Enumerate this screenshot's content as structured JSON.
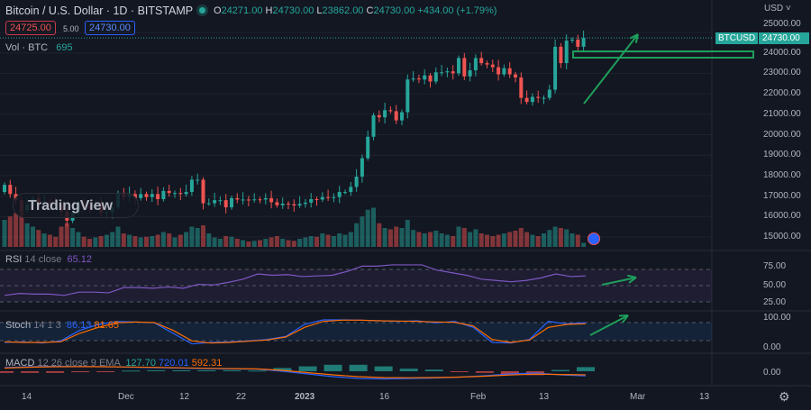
{
  "header": {
    "title": "Bitcoin / U.S. Dollar · 1D · BITSTAMP",
    "o_label": "O",
    "o": "24271.00",
    "h_label": "H",
    "h": "24730.00",
    "l_label": "L",
    "l": "23862.00",
    "c_label": "C",
    "c": "24730.00",
    "change": "+434.00 (+1.79%)"
  },
  "trade": {
    "sell": "24725.00",
    "spread": "5.00",
    "buy": "24730.00"
  },
  "volume": {
    "label": "Vol · BTC",
    "value": "695"
  },
  "rsi": {
    "label": "RSI",
    "params": "14 close",
    "value": "65.12",
    "levels": [
      "75.00",
      "50.00",
      "25.00"
    ]
  },
  "stoch": {
    "label": "Stoch",
    "params": "14 1 3",
    "k": "86.13",
    "d": "81.65",
    "levels": [
      "100.00",
      "0.00"
    ]
  },
  "macd": {
    "label": "MACD",
    "params": "12 26 close 9 EMA",
    "hist": "127.70",
    "macd": "720.01",
    "signal": "592.31",
    "levels": [
      "0.00"
    ]
  },
  "watermark": "TradingView",
  "axis": {
    "currency": "USD",
    "symbol": "BTCUSD",
    "last": "24730.00",
    "ticks": [
      "25000.00",
      "24000.00",
      "23000.00",
      "22000.00",
      "21000.00",
      "20000.00",
      "19000.00",
      "18000.00",
      "17000.00",
      "16000.00",
      "15000.00"
    ]
  },
  "time_ticks": [
    "14",
    "Dec",
    "12",
    "22",
    "2023",
    "16",
    "Feb",
    "13",
    "Mar",
    "13"
  ],
  "colors": {
    "up": "#26a69a",
    "down": "#ef5350",
    "bg": "#131722",
    "rsi": "#7e57c2",
    "k": "#2962ff",
    "d": "#ff6d00",
    "drawing": "#1e9e5a"
  },
  "chart_data": {
    "type": "candlestick",
    "title": "Bitcoin / U.S. Dollar · 1D · BITSTAMP",
    "x_start": "Nov 10",
    "interval": "1D",
    "ylim": [
      14500,
      25500
    ],
    "closes": [
      17550,
      17100,
      16800,
      16300,
      16600,
      16900,
      16650,
      16700,
      16650,
      16600,
      16250,
      15800,
      16200,
      16600,
      16500,
      16450,
      16550,
      16200,
      16200,
      16450,
      17150,
      16950,
      17100,
      16900,
      17100,
      16950,
      17100,
      16850,
      17250,
      17150,
      17150,
      17100,
      17200,
      17800,
      17800,
      16650,
      16650,
      16800,
      16800,
      16450,
      16900,
      16830,
      16830,
      16800,
      16840,
      16830,
      16900,
      16700,
      16550,
      16630,
      16600,
      16540,
      16620,
      16680,
      16850,
      16830,
      16950,
      16940,
      16950,
      17200,
      17200,
      17450,
      17950,
      18850,
      19900,
      20950,
      20850,
      21200,
      21150,
      20700,
      21100,
      22700,
      22750,
      22700,
      22900,
      22600,
      23050,
      23050,
      23100,
      23000,
      23750,
      22850,
      23150,
      23750,
      23500,
      23430,
      23300,
      22950,
      23250,
      22950,
      22800,
      21800,
      21600,
      21850,
      21800,
      21800,
      22200,
      24300,
      23500,
      24600,
      24650,
      24300,
      24730
    ],
    "volumes": [
      40,
      45,
      50,
      55,
      35,
      30,
      25,
      20,
      18,
      15,
      30,
      35,
      28,
      22,
      15,
      12,
      14,
      16,
      18,
      22,
      30,
      20,
      18,
      16,
      14,
      15,
      16,
      18,
      22,
      20,
      14,
      18,
      22,
      30,
      28,
      32,
      20,
      14,
      12,
      16,
      15,
      12,
      10,
      8,
      9,
      10,
      12,
      14,
      16,
      12,
      10,
      9,
      12,
      14,
      16,
      15,
      20,
      18,
      16,
      20,
      18,
      22,
      35,
      45,
      55,
      58,
      35,
      28,
      26,
      30,
      28,
      40,
      25,
      22,
      20,
      22,
      24,
      20,
      18,
      16,
      30,
      28,
      22,
      26,
      20,
      18,
      16,
      18,
      20,
      22,
      24,
      28,
      22,
      18,
      16,
      20,
      25,
      30,
      28,
      26,
      20,
      18,
      6
    ],
    "rsi": [
      35,
      38,
      37,
      37,
      35,
      40,
      40,
      39,
      47,
      47,
      46,
      48,
      46,
      52,
      51,
      55,
      60,
      68,
      66,
      67,
      64,
      65,
      66,
      72,
      80,
      80,
      82,
      82,
      82,
      74,
      70,
      66,
      60,
      58,
      56,
      58,
      62,
      68,
      64,
      65
    ],
    "stoch_k": [
      20,
      22,
      18,
      25,
      60,
      80,
      90,
      88,
      85,
      50,
      15,
      20,
      22,
      25,
      30,
      40,
      80,
      95,
      95,
      94,
      92,
      90,
      92,
      85,
      90,
      70,
      20,
      18,
      30,
      90,
      82,
      86
    ],
    "stoch_d": [
      22,
      20,
      20,
      22,
      50,
      70,
      85,
      88,
      86,
      60,
      25,
      18,
      20,
      24,
      28,
      38,
      70,
      90,
      94,
      94,
      92,
      91,
      90,
      88,
      87,
      75,
      30,
      20,
      28,
      70,
      80,
      82
    ],
    "macd_line": [
      -200,
      -300,
      -350,
      -330,
      -300,
      -250,
      -200,
      -150,
      -100,
      -60,
      -40,
      200,
      500,
      800,
      1000,
      1050,
      1000,
      950,
      850,
      700,
      500,
      400,
      600,
      720
    ],
    "signal_line": [
      -150,
      -250,
      -300,
      -310,
      -300,
      -270,
      -230,
      -180,
      -130,
      -90,
      -60,
      100,
      350,
      600,
      800,
      900,
      920,
      900,
      850,
      750,
      620,
      520,
      560,
      592
    ]
  }
}
